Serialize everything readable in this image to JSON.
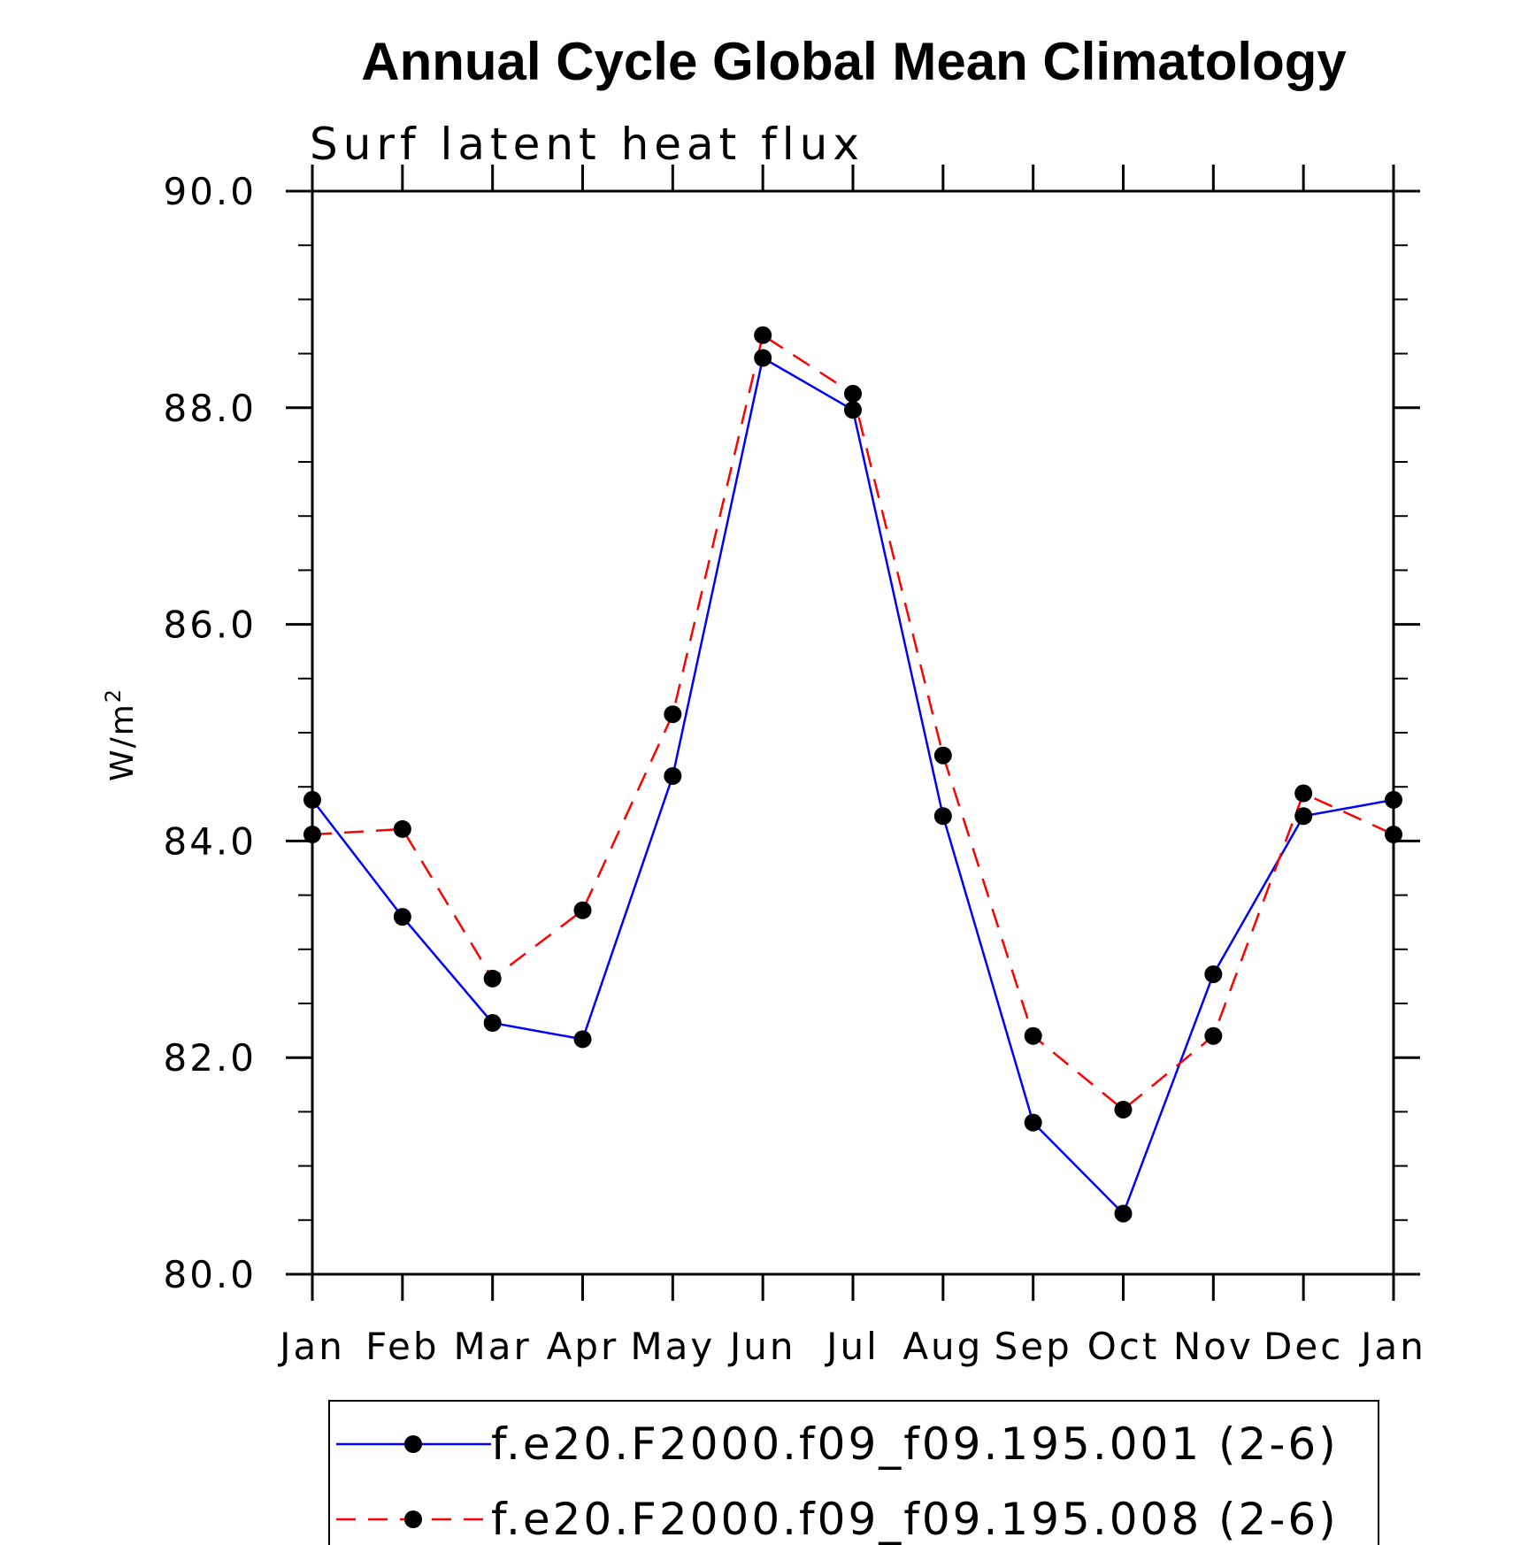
{
  "chart_data": {
    "type": "line",
    "title": "Annual Cycle Global Mean Climatology",
    "subtitle": "Surf latent heat flux",
    "ylabel_main": "W/m",
    "ylabel_sup": "2",
    "xlabel": "",
    "categories": [
      "Jan",
      "Feb",
      "Mar",
      "Apr",
      "May",
      "Jun",
      "Jul",
      "Aug",
      "Sep",
      "Oct",
      "Nov",
      "Dec",
      "Jan"
    ],
    "ylim": [
      80.0,
      90.0
    ],
    "yticks": [
      80.0,
      82.0,
      84.0,
      86.0,
      88.0,
      90.0
    ],
    "ytick_labels": [
      "80.0",
      "82.0",
      "84.0",
      "86.0",
      "88.0",
      "90.0"
    ],
    "series": [
      {
        "name": "f.e20.F2000.f09_f09.195.001 (2-6)",
        "color": "#0000ff",
        "dash": "solid",
        "values": [
          84.38,
          83.3,
          82.32,
          82.17,
          84.6,
          88.46,
          87.98,
          84.23,
          81.4,
          80.56,
          82.77,
          84.23,
          84.38
        ]
      },
      {
        "name": "f.e20.F2000.f09_f09.195.008 (2-6)",
        "color": "#ff0000",
        "dash": "dashed",
        "values": [
          84.06,
          84.11,
          82.73,
          83.36,
          85.17,
          88.67,
          88.13,
          84.79,
          82.2,
          81.52,
          82.2,
          84.44,
          84.06
        ]
      }
    ],
    "legend_position": "bottom"
  }
}
